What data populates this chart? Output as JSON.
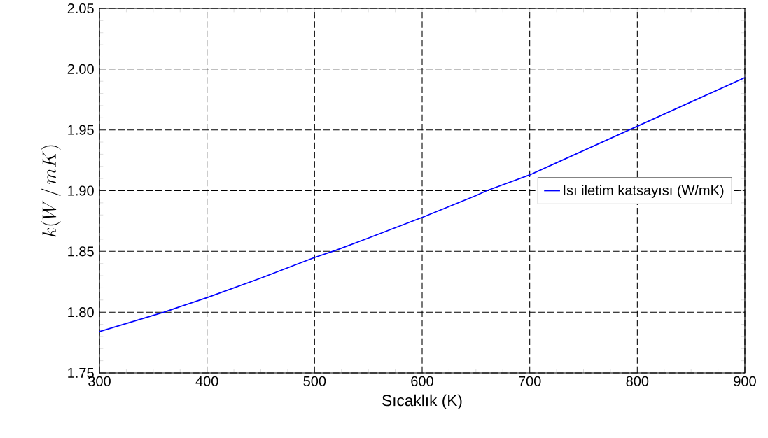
{
  "chart_data": {
    "type": "line",
    "xlabel": "Sıcaklık (K)",
    "ylabel": "k(W\\,/\\,mK)",
    "x": [
      300,
      360,
      400,
      450,
      500,
      520,
      550,
      600,
      650,
      660,
      700,
      750,
      800,
      850,
      900
    ],
    "series": [
      {
        "name": "Isı iletim katsayısı (W/mK)",
        "color": "#0000ff",
        "values": [
          1.784,
          1.8,
          1.812,
          1.828,
          1.845,
          1.851,
          1.861,
          1.878,
          1.896,
          1.9,
          1.913,
          1.933,
          1.953,
          1.973,
          1.993
        ]
      }
    ],
    "xlim": [
      300,
      900
    ],
    "ylim": [
      1.75,
      2.05
    ],
    "xticks": [
      300,
      400,
      500,
      600,
      700,
      800,
      900
    ],
    "yticks": [
      {
        "value": 1.75,
        "label": "1.75"
      },
      {
        "value": 1.8,
        "label": "1.80"
      },
      {
        "value": 1.85,
        "label": "1.85"
      },
      {
        "value": 1.9,
        "label": "1.90"
      },
      {
        "value": 1.95,
        "label": "1.95"
      },
      {
        "value": 2.0,
        "label": "2.00"
      },
      {
        "value": 2.05,
        "label": "2.05"
      }
    ],
    "grid": true,
    "legend": "right",
    "marker": "none",
    "line_style": "solid"
  }
}
